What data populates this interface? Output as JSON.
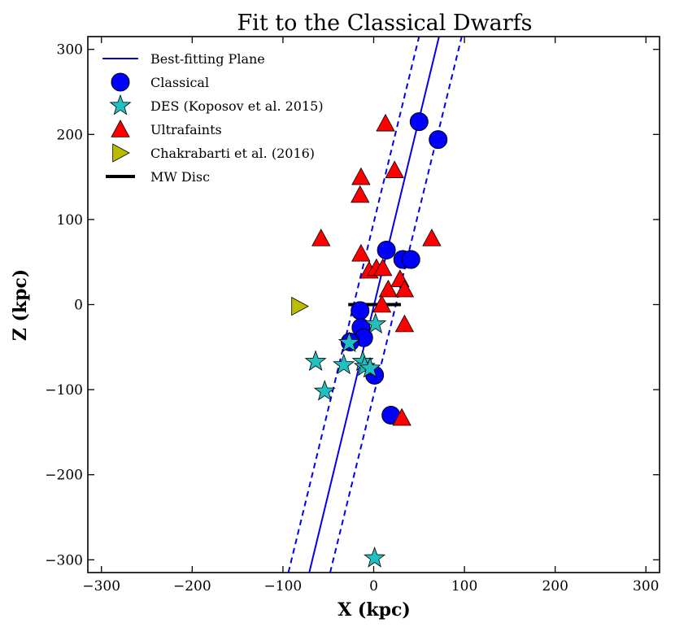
{
  "chart_data": {
    "type": "scatter",
    "title": "Fit to the Classical Dwarfs",
    "xlabel": "X (kpc)",
    "ylabel": "Z (kpc)",
    "xlim": [
      -315,
      315
    ],
    "ylim": [
      -315,
      315
    ],
    "xticks": [
      -300,
      -200,
      -100,
      0,
      100,
      200,
      300
    ],
    "yticks": [
      -300,
      -200,
      -100,
      0,
      100,
      200,
      300
    ],
    "xtick_labels": [
      "−300",
      "−200",
      "−100",
      "0",
      "100",
      "200",
      "300"
    ],
    "ytick_labels": [
      "−300",
      "−200",
      "−100",
      "0",
      "100",
      "200",
      "300"
    ],
    "grid": false,
    "legend_position": "top-left",
    "legend": [
      {
        "key": "plane",
        "label": "Best-fitting Plane"
      },
      {
        "key": "classical",
        "label": "Classical"
      },
      {
        "key": "des",
        "label": "DES (Koposov et al. 2015)"
      },
      {
        "key": "ultrafaints",
        "label": "Ultrafaints"
      },
      {
        "key": "chakrabarti",
        "label": "Chakrabarti et al. (2016)"
      },
      {
        "key": "disc",
        "label": "MW Disc"
      }
    ],
    "plane": {
      "color": "#0000ee",
      "center": [
        [
          -71,
          -315
        ],
        [
          72,
          315
        ]
      ],
      "lower": [
        [
          -94,
          -315
        ],
        [
          50,
          315
        ]
      ],
      "upper": [
        [
          -48,
          -315
        ],
        [
          97,
          315
        ]
      ]
    },
    "disc": {
      "color": "#000000",
      "x": [
        -28,
        30
      ],
      "z": [
        0,
        0
      ]
    },
    "series": [
      {
        "name": "Classical",
        "key": "classical",
        "marker": "circle",
        "color": "#0000ff",
        "points": [
          [
            50,
            215
          ],
          [
            71,
            194
          ],
          [
            14,
            64
          ],
          [
            32,
            53
          ],
          [
            41,
            53
          ],
          [
            -15,
            -7
          ],
          [
            -14,
            -27
          ],
          [
            -11,
            -39
          ],
          [
            -26,
            -44
          ],
          [
            1,
            -83
          ],
          [
            19,
            -130
          ]
        ]
      },
      {
        "name": "DES (Koposov et al. 2015)",
        "key": "des",
        "marker": "star",
        "color": "#20c0c0",
        "points": [
          [
            2,
            -23
          ],
          [
            -27,
            -45
          ],
          [
            -64,
            -67
          ],
          [
            -33,
            -71
          ],
          [
            -12,
            -67
          ],
          [
            -10,
            -73
          ],
          [
            -4,
            -75
          ],
          [
            -54,
            -102
          ],
          [
            1,
            -298
          ]
        ]
      },
      {
        "name": "Ultrafaints",
        "key": "ultrafaints",
        "marker": "triangle",
        "color": "#ff0000",
        "points": [
          [
            13,
            213
          ],
          [
            23,
            158
          ],
          [
            -14,
            150
          ],
          [
            -15,
            129
          ],
          [
            -58,
            78
          ],
          [
            64,
            78
          ],
          [
            -14,
            60
          ],
          [
            -5,
            40
          ],
          [
            3,
            43
          ],
          [
            10,
            43
          ],
          [
            16,
            18
          ],
          [
            29,
            30
          ],
          [
            34,
            18
          ],
          [
            9,
            0
          ],
          [
            34,
            -23
          ],
          [
            31,
            -133
          ]
        ]
      },
      {
        "name": "Chakrabarti et al. (2016)",
        "key": "chakrabarti",
        "marker": "triangle-right",
        "color": "#bbbb00",
        "points": [
          [
            -82,
            -2
          ]
        ]
      }
    ]
  }
}
